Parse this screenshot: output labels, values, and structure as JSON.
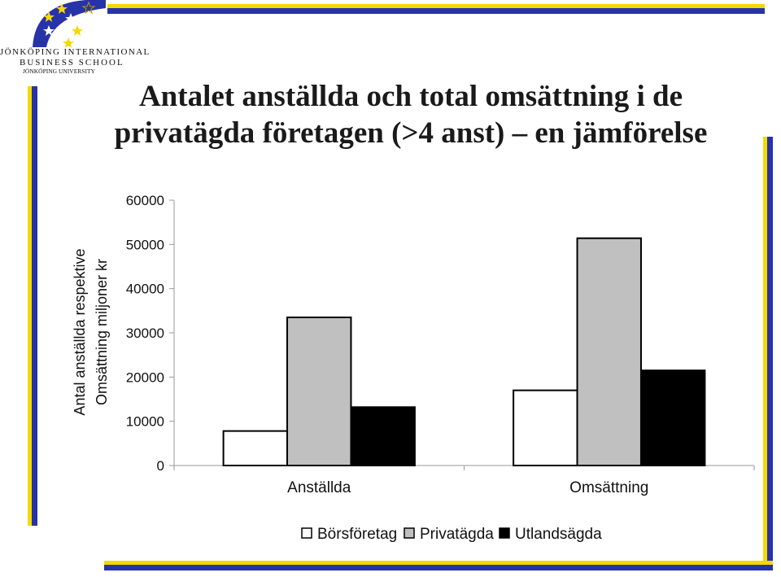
{
  "logo": {
    "line1": "JÖNKÖPING INTERNATIONAL",
    "line2": "BUSINESS SCHOOL",
    "line3": "JÖNKÖPING UNIVERSITY"
  },
  "title_line1": "Antalet anställda och total omsättning i de",
  "title_line2": "privatägda företagen (>4 anst) – en jämförelse",
  "colors": {
    "accent_blue": "#2733a8",
    "accent_yellow": "#f5d800"
  },
  "chart_data": {
    "type": "bar",
    "categories": [
      "Anställda",
      "Omsättning"
    ],
    "series": [
      {
        "name": "Börsföretag",
        "color": "#ffffff",
        "values": [
          7800,
          17000
        ]
      },
      {
        "name": "Privatägda",
        "color": "#c0c0c0",
        "values": [
          33500,
          51400
        ]
      },
      {
        "name": "Utlandsägda",
        "color": "#000000",
        "values": [
          13200,
          21500
        ]
      }
    ],
    "ylabel_line1": "Antal anställda respektive",
    "ylabel_line2": "Omsättning miljoner kr",
    "xlabel": "",
    "ylim": [
      0,
      60000
    ],
    "yticks": [
      "0",
      "10000",
      "20000",
      "30000",
      "40000",
      "50000",
      "60000"
    ],
    "grid": false,
    "legend_position": "bottom"
  }
}
